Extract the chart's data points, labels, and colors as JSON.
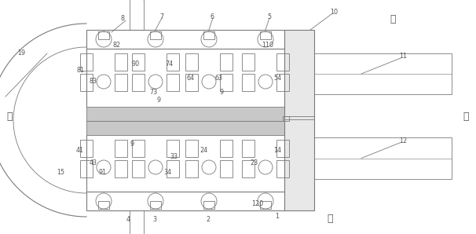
{
  "bg_color": "#ffffff",
  "line_color": "#7a7a7a",
  "gray_fill": "#c8c8c8",
  "light_fill": "#e8e8e8",
  "text_color": "#555555",
  "fig_width": 6.06,
  "fig_height": 2.98,
  "dpi": 100,
  "labels": {
    "left_dir": "左",
    "right_dir": "右",
    "front_dir": "前",
    "back_dir": "后"
  }
}
